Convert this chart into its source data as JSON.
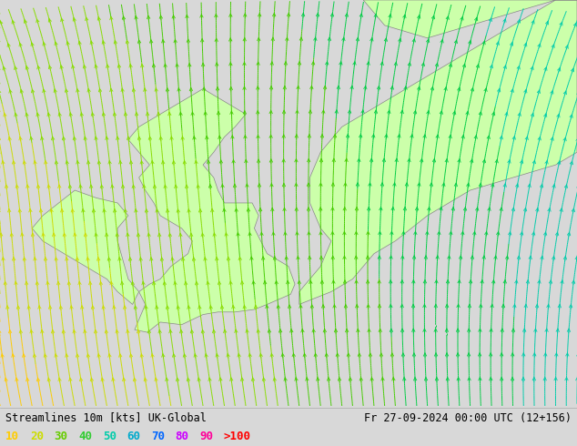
{
  "title_left": "Streamlines 10m [kts] UK-Global",
  "title_right": "Fr 27-09-2024 00:00 UTC (12+156)",
  "legend_labels": [
    "10",
    "20",
    "30",
    "40",
    "50",
    "60",
    "70",
    "80",
    "90",
    ">100"
  ],
  "legend_colors": [
    "#ffcc00",
    "#ccdd00",
    "#66cc00",
    "#33cc33",
    "#00ccaa",
    "#00aacc",
    "#0066ff",
    "#cc00ff",
    "#ff0099",
    "#ff0000"
  ],
  "bg_color": "#d8d8d8",
  "land_color": "#ccffaa",
  "land_border_color": "#888888",
  "fig_width": 6.34,
  "fig_height": 4.9,
  "dpi": 100,
  "bottom_bar_color": "#d8d8d8",
  "text_color": "#000000",
  "label_fontsize": 9,
  "title_fontsize": 8.5,
  "speed_colors": {
    "10": "#ffcc00",
    "20": "#ccdd00",
    "30": "#66dd00",
    "40": "#33cc00",
    "50": "#00cc44",
    "60": "#00ccaa",
    "70": "#00aacc",
    "80": "#0077ff",
    "90": "#0044ff",
    "100": "#ff0000"
  }
}
